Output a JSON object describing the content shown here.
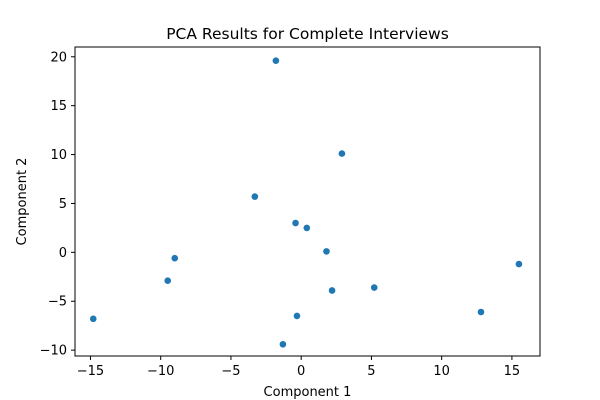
{
  "chart_data": {
    "type": "scatter",
    "title": "PCA Results for Complete Interviews",
    "xlabel": "Component 1",
    "ylabel": "Component 2",
    "xlim": [
      -16.1,
      17.0
    ],
    "ylim": [
      -10.6,
      21.0
    ],
    "xticks": [
      -15,
      -10,
      -5,
      0,
      5,
      10,
      15
    ],
    "yticks": [
      -10,
      -5,
      0,
      5,
      10,
      15,
      20
    ],
    "xtick_labels": [
      "−15",
      "−10",
      "−5",
      "0",
      "5",
      "10",
      "15"
    ],
    "ytick_labels": [
      "−10",
      "−5",
      "0",
      "5",
      "10",
      "15",
      "20"
    ],
    "grid": false,
    "legend": "none",
    "marker_color": "#1f77b4",
    "points": [
      {
        "x": -1.8,
        "y": 19.6
      },
      {
        "x": 2.9,
        "y": 10.1
      },
      {
        "x": -3.3,
        "y": 5.7
      },
      {
        "x": -0.4,
        "y": 3.0
      },
      {
        "x": 0.4,
        "y": 2.5
      },
      {
        "x": 1.8,
        "y": 0.1
      },
      {
        "x": -9.0,
        "y": -0.6
      },
      {
        "x": 15.5,
        "y": -1.2
      },
      {
        "x": -9.5,
        "y": -2.9
      },
      {
        "x": 5.2,
        "y": -3.6
      },
      {
        "x": 2.2,
        "y": -3.9
      },
      {
        "x": 12.8,
        "y": -6.1
      },
      {
        "x": -0.3,
        "y": -6.5
      },
      {
        "x": -14.8,
        "y": -6.8
      },
      {
        "x": -1.3,
        "y": -9.4
      }
    ]
  }
}
